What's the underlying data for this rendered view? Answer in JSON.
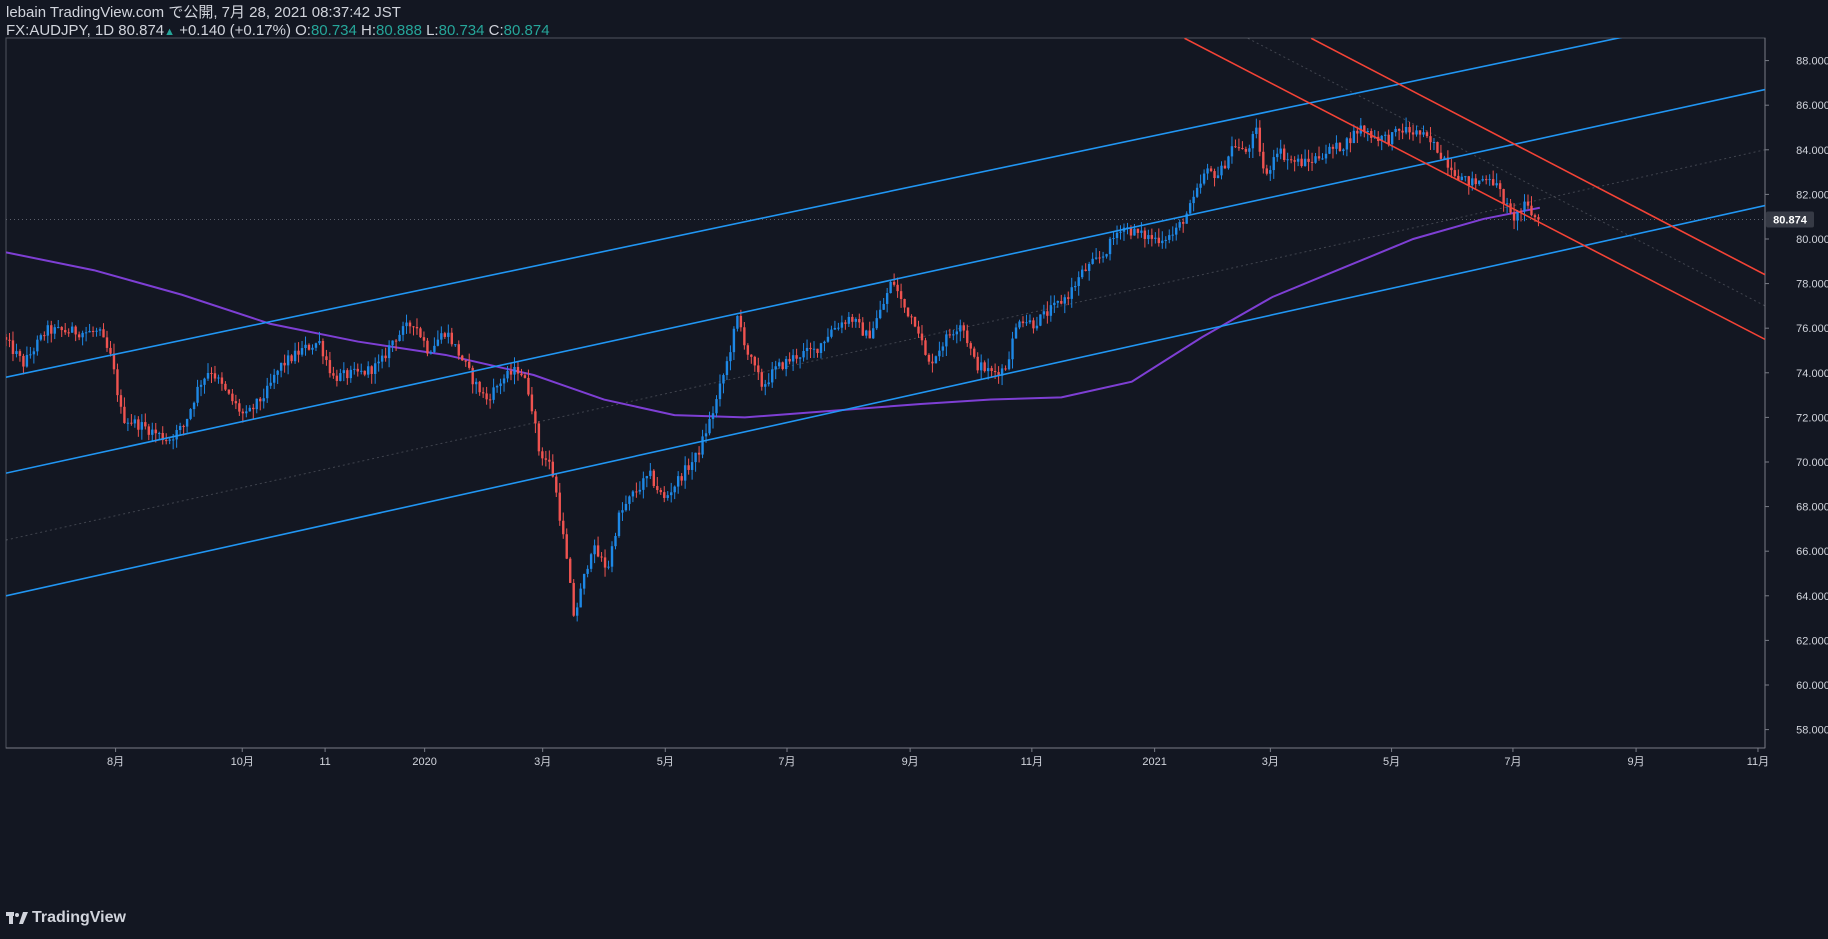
{
  "header": {
    "published": "lebain TradingView.com で公開, 7月 28, 2021 08:37:42 JST",
    "symbol": "FX:AUDJPY, 1D 80.874",
    "change_arrow": "▲",
    "change": "+0.140 (+0.17%)",
    "o_label": "O:",
    "o_value": "80.734",
    "h_label": "H:",
    "h_value": "80.888",
    "l_label": "L:",
    "l_value": "80.734",
    "c_label": "C:",
    "c_value": "80.874"
  },
  "footer": {
    "brand": "TradingView"
  },
  "colors": {
    "background": "#131722",
    "up": "#2962ff",
    "up_alt": "#1e88e5",
    "down": "#ef5350",
    "channel": "#2196f3",
    "downtrend": "#f44336",
    "ma": "#7e3fd4",
    "axis_text": "#d1d4dc",
    "price_tag_bg": "#363a45"
  },
  "chart_data": {
    "type": "candlestick",
    "symbol": "FX:AUDJPY",
    "interval": "1D",
    "last_price": "80.874",
    "y_axis": {
      "range": [
        57,
        89
      ],
      "ticks": [
        "58.000",
        "60.000",
        "62.000",
        "64.000",
        "66.000",
        "68.000",
        "70.000",
        "72.000",
        "74.000",
        "76.000",
        "78.000",
        "80.000",
        "82.000",
        "84.000",
        "86.000",
        "88.000"
      ]
    },
    "x_axis": {
      "ticks": [
        {
          "label": "8月",
          "t": 0.0623
        },
        {
          "label": "10月",
          "t": 0.1343
        },
        {
          "label": "11",
          "t": 0.1814
        },
        {
          "label": "2020",
          "t": 0.238
        },
        {
          "label": "3月",
          "t": 0.3051
        },
        {
          "label": "5月",
          "t": 0.3748
        },
        {
          "label": "7月",
          "t": 0.444
        },
        {
          "label": "9月",
          "t": 0.514
        },
        {
          "label": "11月",
          "t": 0.5832
        },
        {
          "label": "2021",
          "t": 0.653
        },
        {
          "label": "3月",
          "t": 0.7188
        },
        {
          "label": "5月",
          "t": 0.7877
        },
        {
          "label": "7月",
          "t": 0.8567
        },
        {
          "label": "9月",
          "t": 0.9267
        },
        {
          "label": "11月",
          "t": 0.996
        }
      ]
    },
    "price_path": [
      [
        0.0,
        75.6
      ],
      [
        0.012,
        74.4
      ],
      [
        0.025,
        75.9
      ],
      [
        0.055,
        75.8
      ],
      [
        0.062,
        74.6
      ],
      [
        0.068,
        72.0
      ],
      [
        0.08,
        71.6
      ],
      [
        0.094,
        71.0
      ],
      [
        0.103,
        71.6
      ],
      [
        0.112,
        73.5
      ],
      [
        0.118,
        74.2
      ],
      [
        0.128,
        73.0
      ],
      [
        0.138,
        72.0
      ],
      [
        0.15,
        73.1
      ],
      [
        0.158,
        74.3
      ],
      [
        0.17,
        75.0
      ],
      [
        0.18,
        75.4
      ],
      [
        0.188,
        73.8
      ],
      [
        0.205,
        74.0
      ],
      [
        0.215,
        74.4
      ],
      [
        0.222,
        75.5
      ],
      [
        0.234,
        76.3
      ],
      [
        0.242,
        75.0
      ],
      [
        0.252,
        75.9
      ],
      [
        0.262,
        74.5
      ],
      [
        0.268,
        73.6
      ],
      [
        0.275,
        72.8
      ],
      [
        0.284,
        73.7
      ],
      [
        0.294,
        74.2
      ],
      [
        0.3,
        73.0
      ],
      [
        0.305,
        70.5
      ],
      [
        0.312,
        69.8
      ],
      [
        0.315,
        68.5
      ],
      [
        0.32,
        66.0
      ],
      [
        0.325,
        63.0
      ],
      [
        0.335,
        66.2
      ],
      [
        0.344,
        65.2
      ],
      [
        0.35,
        67.5
      ],
      [
        0.358,
        68.5
      ],
      [
        0.368,
        69.4
      ],
      [
        0.376,
        68.3
      ],
      [
        0.385,
        69.3
      ],
      [
        0.395,
        70.3
      ],
      [
        0.405,
        72.5
      ],
      [
        0.412,
        74.5
      ],
      [
        0.418,
        76.5
      ],
      [
        0.424,
        74.8
      ],
      [
        0.432,
        73.4
      ],
      [
        0.44,
        74.2
      ],
      [
        0.452,
        74.8
      ],
      [
        0.462,
        75.0
      ],
      [
        0.472,
        76.0
      ],
      [
        0.482,
        76.5
      ],
      [
        0.492,
        75.6
      ],
      [
        0.5,
        76.9
      ],
      [
        0.506,
        78.2
      ],
      [
        0.512,
        77.0
      ],
      [
        0.52,
        76.2
      ],
      [
        0.526,
        74.3
      ],
      [
        0.536,
        75.5
      ],
      [
        0.545,
        76.3
      ],
      [
        0.553,
        74.4
      ],
      [
        0.562,
        74.0
      ],
      [
        0.57,
        74.2
      ],
      [
        0.578,
        76.5
      ],
      [
        0.586,
        76.2
      ],
      [
        0.596,
        76.8
      ],
      [
        0.606,
        77.5
      ],
      [
        0.614,
        78.5
      ],
      [
        0.626,
        79.3
      ],
      [
        0.636,
        80.6
      ],
      [
        0.646,
        80.2
      ],
      [
        0.656,
        80.0
      ],
      [
        0.666,
        80.2
      ],
      [
        0.676,
        81.5
      ],
      [
        0.684,
        83.0
      ],
      [
        0.692,
        82.9
      ],
      [
        0.7,
        84.3
      ],
      [
        0.706,
        83.8
      ],
      [
        0.713,
        84.8
      ],
      [
        0.718,
        82.6
      ],
      [
        0.724,
        84.1
      ],
      [
        0.732,
        83.5
      ],
      [
        0.742,
        83.4
      ],
      [
        0.752,
        83.9
      ],
      [
        0.762,
        84.2
      ],
      [
        0.772,
        85.0
      ],
      [
        0.78,
        84.6
      ],
      [
        0.788,
        84.5
      ],
      [
        0.796,
        84.9
      ],
      [
        0.806,
        84.7
      ],
      [
        0.815,
        84.1
      ],
      [
        0.824,
        83.2
      ],
      [
        0.831,
        82.6
      ],
      [
        0.838,
        82.5
      ],
      [
        0.845,
        82.9
      ],
      [
        0.852,
        82.0
      ],
      [
        0.858,
        80.9
      ],
      [
        0.866,
        81.5
      ],
      [
        0.872,
        80.874
      ]
    ],
    "moving_average": [
      [
        0.0,
        79.4
      ],
      [
        0.05,
        78.6
      ],
      [
        0.1,
        77.5
      ],
      [
        0.15,
        76.2
      ],
      [
        0.2,
        75.4
      ],
      [
        0.25,
        74.8
      ],
      [
        0.3,
        73.9
      ],
      [
        0.34,
        72.8
      ],
      [
        0.38,
        72.1
      ],
      [
        0.42,
        72.0
      ],
      [
        0.47,
        72.3
      ],
      [
        0.52,
        72.6
      ],
      [
        0.56,
        72.8
      ],
      [
        0.6,
        72.9
      ],
      [
        0.64,
        73.6
      ],
      [
        0.68,
        75.6
      ],
      [
        0.72,
        77.4
      ],
      [
        0.76,
        78.7
      ],
      [
        0.8,
        80.0
      ],
      [
        0.84,
        80.9
      ],
      [
        0.872,
        81.4
      ]
    ],
    "channel_lines": [
      {
        "name": "upper-channel-top",
        "points": [
          [
            0.0,
            73.8
          ],
          [
            0.922,
            89.1
          ]
        ]
      },
      {
        "name": "middle-channel",
        "points": [
          [
            0.0,
            69.5
          ],
          [
            1.0,
            86.7
          ]
        ]
      },
      {
        "name": "lower-channel",
        "points": [
          [
            0.0,
            64.0
          ],
          [
            1.0,
            81.5
          ]
        ]
      }
    ],
    "downtrend_lines": [
      {
        "name": "downtrend-upper",
        "points": [
          [
            0.742,
            89.0
          ],
          [
            1.0,
            78.4
          ]
        ]
      },
      {
        "name": "downtrend-lower",
        "points": [
          [
            0.67,
            89.0
          ],
          [
            1.0,
            75.5
          ]
        ]
      }
    ],
    "guide_lines": [
      {
        "name": "median-guide",
        "points": [
          [
            0.0,
            66.5
          ],
          [
            1.0,
            84.0
          ]
        ]
      },
      {
        "name": "downtrend-guide",
        "points": [
          [
            0.706,
            89.0
          ],
          [
            1.0,
            77.0
          ]
        ]
      }
    ]
  }
}
